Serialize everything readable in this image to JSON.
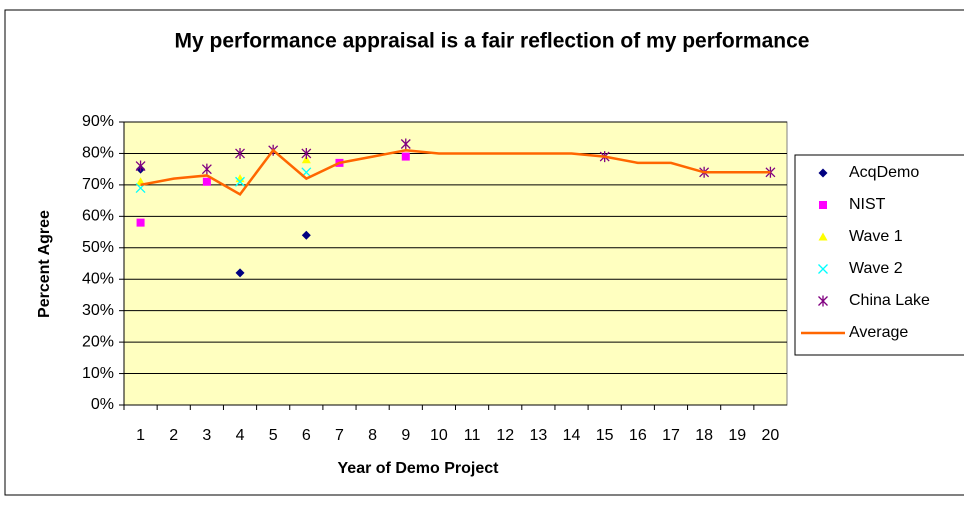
{
  "chart_data": {
    "type": "line",
    "title": "My performance appraisal is a fair reflection of my performance",
    "x_label": "Year of Demo Project",
    "y_label": "Percent Agree",
    "categories": [
      "1",
      "2",
      "3",
      "4",
      "5",
      "6",
      "7",
      "8",
      "9",
      "10",
      "11",
      "12",
      "13",
      "14",
      "15",
      "16",
      "17",
      "18",
      "19",
      "20"
    ],
    "ylim": [
      0,
      90
    ],
    "yticks": [
      {
        "value": 0,
        "label": "0%"
      },
      {
        "value": 10,
        "label": "10%"
      },
      {
        "value": 20,
        "label": "20%"
      },
      {
        "value": 30,
        "label": "30%"
      },
      {
        "value": 40,
        "label": "40%"
      },
      {
        "value": 50,
        "label": "50%"
      },
      {
        "value": 60,
        "label": "60%"
      },
      {
        "value": 70,
        "label": "70%"
      },
      {
        "value": 80,
        "label": "80%"
      },
      {
        "value": 90,
        "label": "90%"
      }
    ],
    "grid": true,
    "legend": "right",
    "series": [
      {
        "name": "AcqDemo",
        "color": "#000080",
        "marker": "diamond",
        "line": false,
        "values": [
          75,
          null,
          null,
          42,
          null,
          54,
          null,
          null,
          null,
          null,
          null,
          null,
          null,
          null,
          null,
          null,
          null,
          null,
          null,
          null
        ]
      },
      {
        "name": "NIST",
        "color": "#ff00ff",
        "marker": "square",
        "line": false,
        "values": [
          58,
          null,
          71,
          null,
          null,
          null,
          77,
          null,
          79,
          null,
          null,
          null,
          null,
          null,
          null,
          null,
          null,
          null,
          null,
          null
        ]
      },
      {
        "name": "Wave 1",
        "color": "#ffff00",
        "marker": "triangle",
        "line": false,
        "values": [
          71,
          null,
          null,
          72,
          null,
          78,
          null,
          null,
          null,
          null,
          null,
          null,
          null,
          null,
          null,
          null,
          null,
          null,
          null,
          null
        ]
      },
      {
        "name": "Wave 2",
        "color": "#00ffff",
        "marker": "x",
        "line": false,
        "values": [
          69,
          null,
          null,
          71,
          null,
          74,
          null,
          null,
          null,
          null,
          null,
          null,
          null,
          null,
          null,
          null,
          null,
          null,
          null,
          null
        ]
      },
      {
        "name": "China Lake",
        "color": "#800080",
        "marker": "star",
        "line": false,
        "values": [
          76,
          null,
          75,
          80,
          81,
          80,
          null,
          null,
          83,
          null,
          null,
          null,
          null,
          null,
          79,
          null,
          null,
          74,
          null,
          74
        ]
      },
      {
        "name": "Average",
        "color": "#ff6600",
        "marker": "none",
        "line": true,
        "values": [
          70,
          72,
          73,
          67,
          81,
          72,
          77,
          79,
          81,
          80,
          80,
          80,
          80,
          80,
          79,
          77,
          77,
          74,
          74,
          74
        ]
      }
    ]
  }
}
